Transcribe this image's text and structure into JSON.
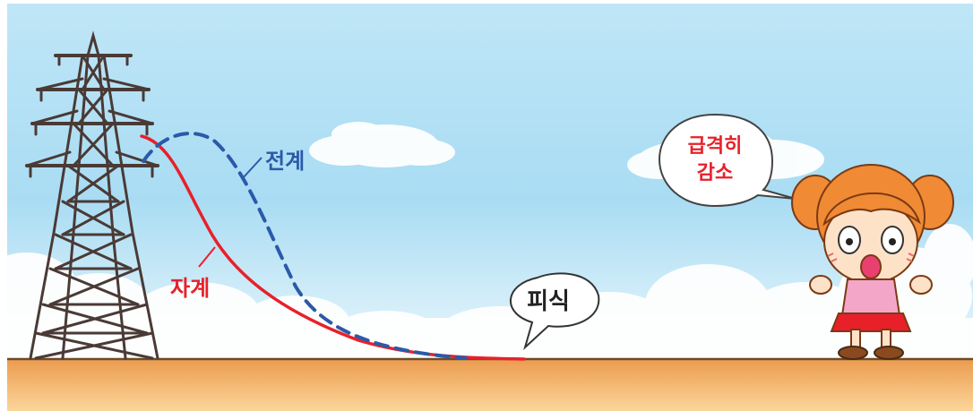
{
  "labels": {
    "electric_field": "전계",
    "magnetic_field": "자계",
    "sound": "피식",
    "speech_line1": "급격히",
    "speech_line2": "감소"
  },
  "colors": {
    "electric_field_curve": "#2a5aa8",
    "magnetic_field_curve": "#e8202a",
    "sky_top": "#bfe6f7",
    "sky_bottom": "#eaf7fc",
    "ground_top": "#f0a85a",
    "ground_bottom": "#fbd59a",
    "tower": "#4a3a36"
  },
  "icons": {
    "tower": "transmission-tower-icon",
    "girl": "surprised-girl-icon"
  }
}
